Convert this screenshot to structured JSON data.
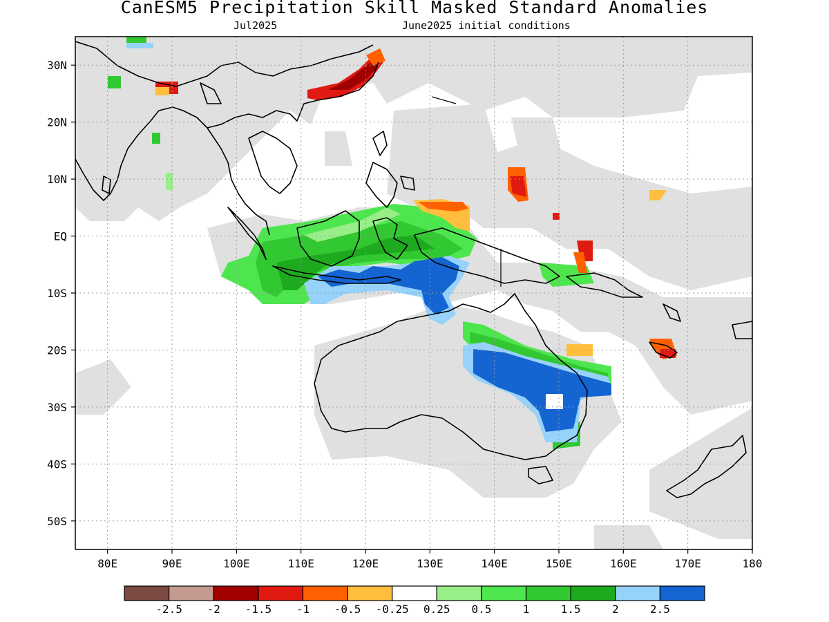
{
  "title": "CanESM5 Precipitation Skill Masked Standard Anomalies",
  "subtitle_left": "Jul2025",
  "subtitle_right": "June2025 initial conditions",
  "map": {
    "lon_range": [
      75,
      180
    ],
    "lat_range": [
      -55,
      35
    ],
    "lat_ticks": [
      {
        "value": 30,
        "label": "30N"
      },
      {
        "value": 20,
        "label": "20N"
      },
      {
        "value": 10,
        "label": "10N"
      },
      {
        "value": 0,
        "label": "EQ"
      },
      {
        "value": -10,
        "label": "10S"
      },
      {
        "value": -20,
        "label": "20S"
      },
      {
        "value": -30,
        "label": "30S"
      },
      {
        "value": -40,
        "label": "40S"
      },
      {
        "value": -50,
        "label": "50S"
      }
    ],
    "lon_ticks": [
      {
        "value": 80,
        "label": "80E"
      },
      {
        "value": 90,
        "label": "90E"
      },
      {
        "value": 100,
        "label": "100E"
      },
      {
        "value": 110,
        "label": "110E"
      },
      {
        "value": 120,
        "label": "120E"
      },
      {
        "value": 130,
        "label": "130E"
      },
      {
        "value": 140,
        "label": "140E"
      },
      {
        "value": 150,
        "label": "150E"
      },
      {
        "value": 160,
        "label": "160E"
      },
      {
        "value": 170,
        "label": "170E"
      },
      {
        "value": 180,
        "label": "180"
      }
    ],
    "colors": {
      "mask_gray": "#e0e0e0",
      "land_outline": "#000000",
      "grid": "#9a9a9a"
    }
  },
  "colorbar": {
    "colors": [
      "#7a4a42",
      "#c49a90",
      "#a00000",
      "#e01a10",
      "#ff6000",
      "#ffbe3c",
      "#ffffff",
      "#98ee88",
      "#4ee64e",
      "#32c832",
      "#1eaa1e",
      "#96d2fa",
      "#1464d2"
    ],
    "tick_labels": [
      "-2.5",
      "-2",
      "-1.5",
      "-1",
      "-0.5",
      "-0.25",
      "0.25",
      "0.5",
      "1",
      "1.5",
      "2",
      "2.5"
    ]
  }
}
